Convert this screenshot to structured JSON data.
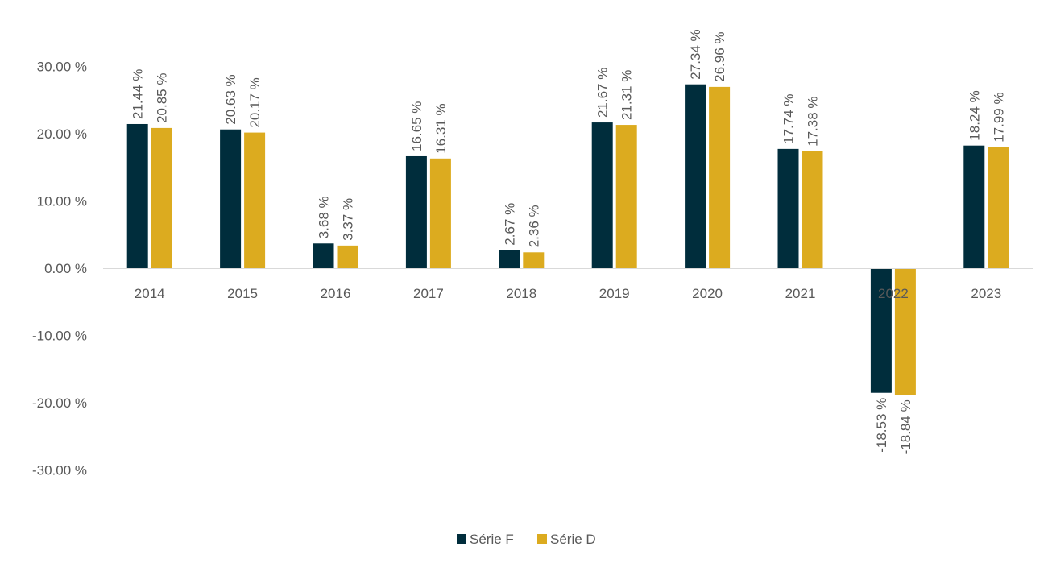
{
  "chart_data": {
    "type": "bar",
    "categories": [
      "2014",
      "2015",
      "2016",
      "2017",
      "2018",
      "2019",
      "2020",
      "2021",
      "2022",
      "2023"
    ],
    "series": [
      {
        "name": "Série F",
        "color": "#002d3c",
        "values": [
          21.44,
          20.63,
          3.68,
          16.65,
          2.67,
          21.67,
          27.34,
          17.74,
          -18.53,
          18.24
        ],
        "labels": [
          "21.44 %",
          "20.63 %",
          "3.68 %",
          "16.65 %",
          "2.67 %",
          "21.67 %",
          "27.34 %",
          "17.74 %",
          "-18.53 %",
          "18.24 %"
        ]
      },
      {
        "name": "Série D",
        "color": "#dcab1f",
        "values": [
          20.85,
          20.17,
          3.37,
          16.31,
          2.36,
          21.31,
          26.96,
          17.38,
          -18.84,
          17.99
        ],
        "labels": [
          "20.85 %",
          "20.17 %",
          "3.37 %",
          "16.31 %",
          "2.36 %",
          "21.31 %",
          "26.96 %",
          "17.38 %",
          "-18.84 %",
          "17.99 %"
        ]
      }
    ],
    "yticks": [
      30,
      20,
      10,
      0,
      -10,
      -20,
      -30
    ],
    "ytick_labels": [
      "30.00 %",
      "20.00 %",
      "10.00 %",
      "0.00 %",
      "-10.00 %",
      "-20.00 %",
      "-30.00 %"
    ],
    "ylim": [
      -30,
      30
    ],
    "grid": false,
    "legend": "bottom-center"
  }
}
